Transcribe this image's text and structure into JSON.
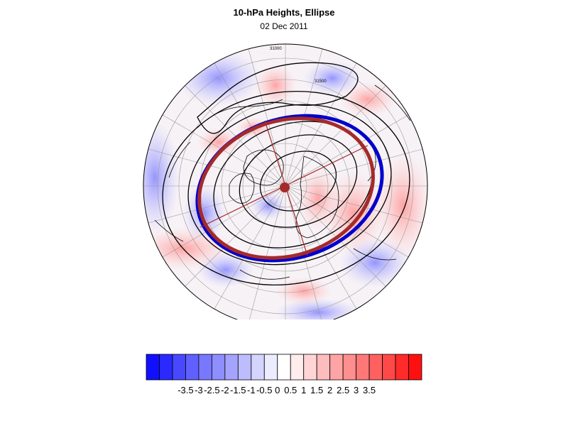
{
  "title": "10-hPa Heights, Ellipse",
  "subtitle": "02 Dec 2011",
  "contour_labels": [
    "31000",
    "31500"
  ],
  "colorbar": {
    "ticks": [
      "-3.5",
      "-3",
      "-2.5",
      "-2",
      "-1.5",
      "-1",
      "-0.5",
      "0",
      "0.5",
      "1",
      "1.5",
      "2",
      "2.5",
      "3",
      "3.5"
    ],
    "colors": [
      "#1010ff",
      "#2a2aff",
      "#4848ff",
      "#6060ff",
      "#7878ff",
      "#8e8eff",
      "#a4a4ff",
      "#bcbcff",
      "#d4d4ff",
      "#ececff",
      "#ffffff",
      "#ffecec",
      "#ffd4d4",
      "#ffbcbc",
      "#ffa4a4",
      "#ff8e8e",
      "#ff7878",
      "#ff6060",
      "#ff4848",
      "#ff2a2a",
      "#ff1010"
    ]
  },
  "colors": {
    "ellipse_blue": "#0000cc",
    "ellipse_red": "#a52a2a",
    "contour": "#000000"
  }
}
